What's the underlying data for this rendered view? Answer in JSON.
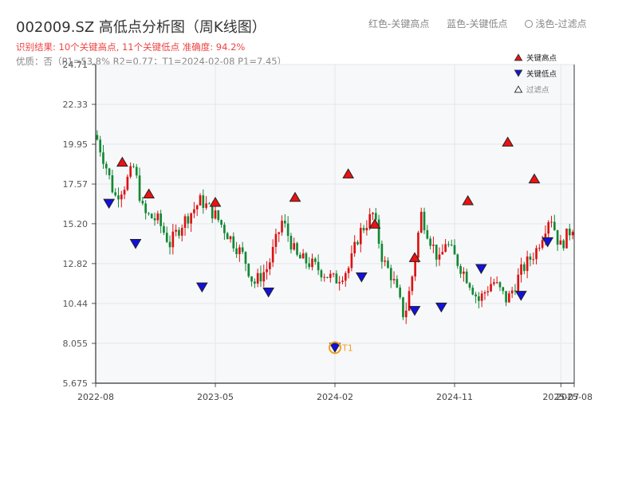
{
  "header": {
    "title": "002009.SZ 高低点分析图（周K线图）",
    "subtitle": "识别结果: 10个关键高点, 11个关键低点  准确度: 94.2%",
    "quality": "优质：否（P1=53.8%  R2=0.77；T1=2024-02-08 P1=7.45）"
  },
  "top_legend": {
    "red": "红色-关键高点",
    "blue": "蓝色-关键低点",
    "light": "浅色-过滤点"
  },
  "colors": {
    "up": "#dd1111",
    "down": "#118833",
    "high_marker": "#ee1111",
    "low_marker": "#1111dd",
    "t1_marker": "#f0a020",
    "plot_bg": "#f7f8fa",
    "grid": "#e4e6ea"
  },
  "chart_data": {
    "type": "candlestick",
    "y_ticks": [
      "5.675",
      "8.055",
      "10.44",
      "12.82",
      "15.20",
      "17.57",
      "19.95",
      "22.33",
      "24.71"
    ],
    "ylim": [
      5.675,
      24.71
    ],
    "x_ticks": [
      "2022-08",
      "2023-05",
      "2024-02",
      "2024-11",
      "2025-07",
      "2025-08"
    ],
    "x_range": [
      "2022-08",
      "2025-08"
    ],
    "legend": {
      "position": "top-right",
      "entries": [
        "关键高点",
        "关键低点",
        "过滤点"
      ]
    },
    "grid": true,
    "price_path": [
      {
        "t": 0.0,
        "p": 20.5
      },
      {
        "t": 0.02,
        "p": 18.8
      },
      {
        "t": 0.04,
        "p": 16.8
      },
      {
        "t": 0.06,
        "p": 17.5
      },
      {
        "t": 0.08,
        "p": 18.6
      },
      {
        "t": 0.1,
        "p": 15.8
      },
      {
        "t": 0.13,
        "p": 15.4
      },
      {
        "t": 0.155,
        "p": 14.0
      },
      {
        "t": 0.18,
        "p": 15.2
      },
      {
        "t": 0.22,
        "p": 16.6
      },
      {
        "t": 0.25,
        "p": 15.7
      },
      {
        "t": 0.28,
        "p": 14.4
      },
      {
        "t": 0.31,
        "p": 13.2
      },
      {
        "t": 0.33,
        "p": 11.6
      },
      {
        "t": 0.36,
        "p": 12.6
      },
      {
        "t": 0.39,
        "p": 15.4
      },
      {
        "t": 0.42,
        "p": 13.2
      },
      {
        "t": 0.45,
        "p": 12.8
      },
      {
        "t": 0.5,
        "p": 11.8
      },
      {
        "t": 0.53,
        "p": 12.6
      },
      {
        "t": 0.55,
        "p": 14.6
      },
      {
        "t": 0.58,
        "p": 15.8
      },
      {
        "t": 0.6,
        "p": 13.0
      },
      {
        "t": 0.62,
        "p": 12.0
      },
      {
        "t": 0.645,
        "p": 9.6
      },
      {
        "t": 0.66,
        "p": 11.8
      },
      {
        "t": 0.68,
        "p": 15.8
      },
      {
        "t": 0.7,
        "p": 14.2
      },
      {
        "t": 0.72,
        "p": 12.8
      },
      {
        "t": 0.73,
        "p": 14.2
      },
      {
        "t": 0.75,
        "p": 13.2
      },
      {
        "t": 0.78,
        "p": 11.8
      },
      {
        "t": 0.8,
        "p": 10.6
      },
      {
        "t": 0.83,
        "p": 11.8
      },
      {
        "t": 0.86,
        "p": 10.6
      },
      {
        "t": 0.89,
        "p": 12.4
      },
      {
        "t": 0.92,
        "p": 13.6
      },
      {
        "t": 0.95,
        "p": 15.8
      },
      {
        "t": 0.97,
        "p": 13.8
      },
      {
        "t": 1.0,
        "p": 15.2
      }
    ],
    "key_highs": [
      {
        "date": "2022-10",
        "price": 18.9
      },
      {
        "date": "2022-12",
        "price": 17.0
      },
      {
        "date": "2023-05",
        "price": 16.5
      },
      {
        "date": "2023-11",
        "price": 16.8
      },
      {
        "date": "2024-03",
        "price": 18.2
      },
      {
        "date": "2024-05",
        "price": 15.2
      },
      {
        "date": "2024-08",
        "price": 13.2
      },
      {
        "date": "2024-12",
        "price": 16.6
      },
      {
        "date": "2025-03",
        "price": 20.1
      },
      {
        "date": "2025-05",
        "price": 17.9
      }
    ],
    "key_lows": [
      {
        "date": "2022-09",
        "price": 16.4
      },
      {
        "date": "2022-11",
        "price": 14.0
      },
      {
        "date": "2023-04",
        "price": 11.4
      },
      {
        "date": "2023-09",
        "price": 11.1
      },
      {
        "date": "2024-02",
        "price": 7.8
      },
      {
        "date": "2024-04",
        "price": 12.0
      },
      {
        "date": "2024-08",
        "price": 10.0
      },
      {
        "date": "2024-10",
        "price": 10.2
      },
      {
        "date": "2025-01",
        "price": 12.5
      },
      {
        "date": "2025-04",
        "price": 10.9
      },
      {
        "date": "2025-06",
        "price": 14.1
      }
    ],
    "annotation": {
      "label": "T1",
      "date": "2024-02-08",
      "price": 7.8
    }
  }
}
